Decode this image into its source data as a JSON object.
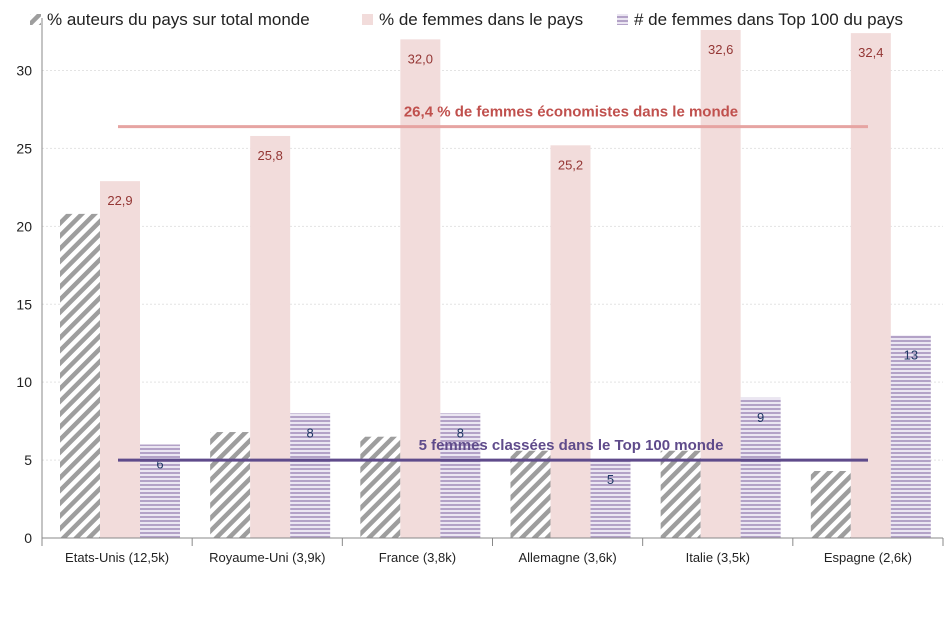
{
  "chart_data": {
    "type": "bar",
    "categories": [
      "Etats-Unis (12,5k)",
      "Royaume-Uni (3,9k)",
      "France (3,8k)",
      "Allemagne (3,6k)",
      "Italie (3,5k)",
      "Espagne (2,6k)"
    ],
    "series": [
      {
        "name": "% auteurs du pays sur total monde",
        "values": [
          20.8,
          6.8,
          6.5,
          5.6,
          5.6,
          4.3
        ],
        "labels": [
          "",
          "",
          "",
          "",
          "",
          ""
        ],
        "color": "#9e9e9e",
        "pattern": "diagonal-hatch"
      },
      {
        "name": "% de femmes dans le pays",
        "values": [
          22.9,
          25.8,
          32.0,
          25.2,
          32.6,
          32.4
        ],
        "labels": [
          "22,9",
          "25,8",
          "32,0",
          "25,2",
          "32,6",
          "32,4"
        ],
        "color": "#f2dcdb",
        "label_color": "#943634"
      },
      {
        "name": "# de femmes dans Top 100 du pays",
        "values": [
          6,
          8,
          8,
          5,
          9,
          13
        ],
        "labels": [
          "6",
          "8",
          "8",
          "5",
          "9",
          "13"
        ],
        "color": "#b3a2c7",
        "pattern": "horizontal-stripes",
        "label_color": "#1f3864"
      }
    ],
    "reference_lines": [
      {
        "value": 26.4,
        "label": "26,4 % de femmes économistes dans le monde",
        "color": "#e6a4a2",
        "label_color": "#c0504d"
      },
      {
        "value": 5,
        "label": "5 femmes classées dans le Top 100 monde",
        "color": "#5f4b8b",
        "label_color": "#5f4b8b"
      }
    ],
    "yticks": [
      0,
      5,
      10,
      15,
      20,
      25,
      30
    ],
    "ylim": [
      0,
      32.6
    ],
    "grid": true,
    "legend_position": "top"
  }
}
